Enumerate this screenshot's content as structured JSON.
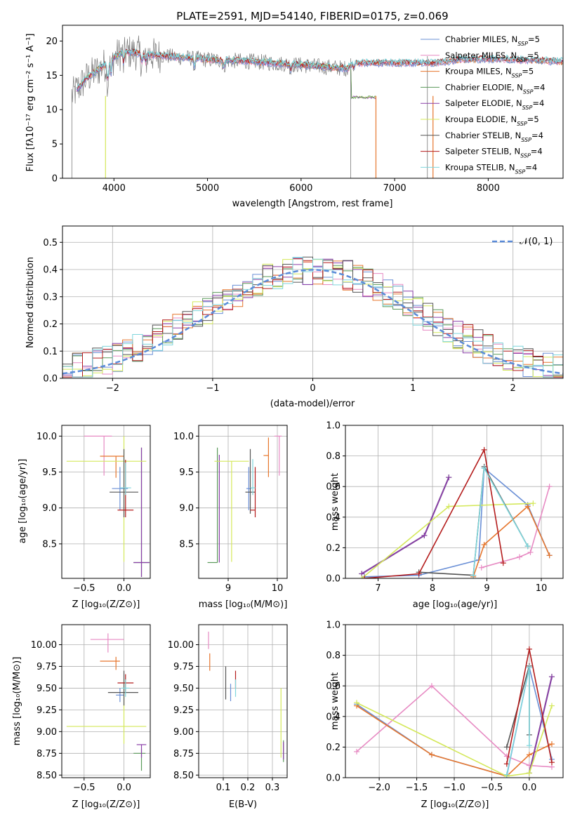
{
  "colors": {
    "series": [
      "#6a8fd6",
      "#e78ac3",
      "#e6762d",
      "#5a9a5a",
      "#8a3fa8",
      "#d4e85a",
      "#555555",
      "#b41c1c",
      "#7fd6dc"
    ],
    "normal": "#5b8bd8",
    "spectrum": "#7a7a7a"
  },
  "chart_data": [
    {
      "id": "spectrum",
      "type": "line",
      "title": "PLATE=2591, MJD=54140, FIBERID=0175, z=0.069",
      "xlabel": "wavelength [Angstrom, rest frame]",
      "ylabel": "Flux [fλ10⁻¹⁷ erg cm⁻² s⁻¹ A⁻¹]",
      "xlim": [
        3450,
        8800
      ],
      "ylim": [
        0,
        22.3
      ],
      "xticks": [
        4000,
        5000,
        6000,
        7000,
        8000
      ],
      "yticks": [
        0,
        5,
        10,
        15,
        20
      ],
      "grid": false,
      "legend_position": "top-right",
      "legend": [
        {
          "model": "Chabrier MILES, N",
          "sub": "SSP",
          "n": "=5"
        },
        {
          "model": "Salpeter MILES, N",
          "sub": "SSP",
          "n": "=5"
        },
        {
          "model": "Kroupa MILES, N",
          "sub": "SSP",
          "n": "=5"
        },
        {
          "model": "Chabrier ELODIE, N",
          "sub": "SSP",
          "n": "=4"
        },
        {
          "model": "Salpeter ELODIE, N",
          "sub": "SSP",
          "n": "=4"
        },
        {
          "model": "Kroupa ELODIE, N",
          "sub": "SSP",
          "n": "=5"
        },
        {
          "model": "Chabrier STELIB, N",
          "sub": "SSP",
          "n": "=4"
        },
        {
          "model": "Salpeter STELIB, N",
          "sub": "SSP",
          "n": "=4"
        },
        {
          "model": "Kroupa STELIB, N",
          "sub": "SSP",
          "n": "=4"
        }
      ],
      "continuum_x": [
        3550,
        3700,
        3900,
        4100,
        4400,
        5000,
        5500,
        6000,
        6500,
        6550,
        7000,
        7400,
        7700,
        8000,
        8300,
        8800
      ],
      "continuum_y": [
        12.0,
        14.5,
        16.5,
        18.5,
        18.0,
        17.3,
        17.0,
        16.5,
        16.0,
        16.8,
        16.8,
        16.8,
        17.3,
        17.4,
        17.3,
        17.0
      ],
      "elodie_drop": {
        "start": 6540,
        "end": 6800,
        "level": 11.8
      }
    },
    {
      "id": "residuals",
      "type": "histogram",
      "xlabel": "(data-model)/error",
      "ylabel": "Normed distribution",
      "xlim": [
        -2.5,
        2.5
      ],
      "ylim": [
        0,
        0.56
      ],
      "xticks": [
        -2,
        -1,
        0,
        1,
        2
      ],
      "yticks": [
        0.0,
        0.1,
        0.2,
        0.3,
        0.4,
        0.5
      ],
      "grid": true,
      "legend_position": "top-right",
      "legend": "𝒩(0, 1)"
    },
    {
      "id": "age_vs_Z",
      "type": "errorbar",
      "xlabel": "Z [log₁₀(Z/Z⊙)]",
      "ylabel": "age  [log₁₀(age/yr)]",
      "xlim": [
        -0.78,
        0.33
      ],
      "ylim": [
        8.02,
        10.15
      ],
      "xticks": [
        -0.5,
        0.0
      ],
      "yticks": [
        8.5,
        9.0,
        9.5,
        10.0
      ],
      "grid": true,
      "points": [
        {
          "x": -0.05,
          "y": 9.27,
          "xerr": [
            0.1,
            0.1
          ],
          "yerr": [
            0.3,
            0.3
          ]
        },
        {
          "x": -0.25,
          "y": 10.0,
          "xerr": [
            0.25,
            0.1
          ],
          "yerr": [
            0.55,
            0.0
          ]
        },
        {
          "x": -0.1,
          "y": 9.72,
          "xerr": [
            0.2,
            0.1
          ],
          "yerr": [
            0.3,
            0.0
          ]
        },
        {
          "x": 0.22,
          "y": 8.24,
          "xerr": [
            0.1,
            0.1
          ],
          "yerr": [
            0.2,
            1.6
          ]
        },
        {
          "x": 0.22,
          "y": 8.24,
          "xerr": [
            0.1,
            0.1
          ],
          "yerr": [
            0.2,
            1.6
          ]
        },
        {
          "x": 0.0,
          "y": 9.65,
          "xerr": [
            0.72,
            0.28
          ],
          "yerr": [
            1.4,
            0.35
          ]
        },
        {
          "x": 0.0,
          "y": 9.22,
          "xerr": [
            0.18,
            0.18
          ],
          "yerr": [
            0.35,
            0.6
          ]
        },
        {
          "x": 0.02,
          "y": 8.97,
          "xerr": [
            0.1,
            0.1
          ],
          "yerr": [
            0.1,
            0.7
          ]
        },
        {
          "x": 0.02,
          "y": 9.28,
          "xerr": [
            0.07,
            0.07
          ],
          "yerr": [
            0.1,
            0.35
          ]
        }
      ]
    },
    {
      "id": "age_vs_mass",
      "type": "errorbar",
      "xlabel": "mass [log₁₀(M/M⊙)]",
      "ylabel": "",
      "xlim": [
        8.4,
        10.2
      ],
      "ylim": [
        8.02,
        10.15
      ],
      "xticks": [
        9,
        10
      ],
      "yticks": [
        8.5,
        9.0,
        9.5,
        10.0
      ],
      "grid": true,
      "points": [
        {
          "x": 9.42,
          "y": 9.27,
          "xerr": [
            0.05,
            0.05
          ],
          "yerr": [
            0.3,
            0.3
          ]
        },
        {
          "x": 10.04,
          "y": 10.0,
          "xerr": [
            0.1,
            0.05
          ],
          "yerr": [
            0.55,
            0.0
          ]
        },
        {
          "x": 9.82,
          "y": 9.73,
          "xerr": [
            0.1,
            0.0
          ],
          "yerr": [
            0.3,
            0.25
          ]
        },
        {
          "x": 8.78,
          "y": 8.24,
          "xerr": [
            0.2,
            0.0
          ],
          "yerr": [
            0.0,
            1.6
          ]
        },
        {
          "x": 8.82,
          "y": 8.24,
          "xerr": [
            0.0,
            0.0
          ],
          "yerr": [
            0.0,
            1.5
          ]
        },
        {
          "x": 9.07,
          "y": 9.65,
          "xerr": [
            0.35,
            0.35
          ],
          "yerr": [
            1.4,
            0.0
          ]
        },
        {
          "x": 9.45,
          "y": 9.22,
          "xerr": [
            0.1,
            0.1
          ],
          "yerr": [
            0.3,
            0.6
          ]
        },
        {
          "x": 9.55,
          "y": 8.97,
          "xerr": [
            0.1,
            0.0
          ],
          "yerr": [
            0.1,
            0.6
          ]
        },
        {
          "x": 9.5,
          "y": 9.28,
          "xerr": [
            0.05,
            0.05
          ],
          "yerr": [
            0.1,
            0.4
          ]
        }
      ]
    },
    {
      "id": "mass_weight_vs_age",
      "type": "line",
      "xlabel": "age  [log₁₀(age/yr)]",
      "ylabel": "mass weight",
      "xlim": [
        6.4,
        10.4
      ],
      "ylim": [
        0,
        1.0
      ],
      "xticks": [
        7,
        8,
        9,
        10
      ],
      "yticks": [
        0.0,
        0.2,
        0.4,
        0.6,
        0.8,
        1.0
      ],
      "grid": true,
      "series": [
        {
          "x": [
            6.75,
            7.75,
            8.85,
            8.95,
            9.75,
            10.15
          ],
          "y": [
            0.01,
            0.02,
            0.12,
            0.72,
            0.48,
            0.15
          ]
        },
        {
          "x": [
            8.9,
            9.6,
            9.8,
            10.15
          ],
          "y": [
            0.07,
            0.14,
            0.17,
            0.6
          ]
        },
        {
          "x": [
            8.75,
            8.95,
            9.75,
            10.15
          ],
          "y": [
            0.01,
            0.22,
            0.47,
            0.15
          ]
        },
        {
          "x": [
            6.7,
            7.85,
            8.3
          ],
          "y": [
            0.03,
            0.28,
            0.66
          ]
        },
        {
          "x": [
            6.7,
            7.85,
            8.3
          ],
          "y": [
            0.03,
            0.28,
            0.66
          ]
        },
        {
          "x": [
            6.7,
            8.3,
            9.85
          ],
          "y": [
            0.0,
            0.47,
            0.49
          ]
        },
        {
          "x": [
            7.75,
            8.75,
            8.95,
            9.75
          ],
          "y": [
            0.04,
            0.02,
            0.73,
            0.21
          ]
        },
        {
          "x": [
            6.75,
            7.75,
            8.95,
            9.3
          ],
          "y": [
            0.0,
            0.03,
            0.84,
            0.1
          ]
        },
        {
          "x": [
            8.75,
            8.95,
            9.75
          ],
          "y": [
            0.02,
            0.72,
            0.21
          ]
        }
      ]
    },
    {
      "id": "mass_vs_Z",
      "type": "errorbar",
      "xlabel": "Z [log₁₀(Z/Z⊙)]",
      "ylabel": "mass [log₁₀(M/M⊙)]",
      "xlim": [
        -0.78,
        0.33
      ],
      "ylim": [
        8.47,
        10.23
      ],
      "xticks": [
        -0.5,
        0.0
      ],
      "yticks": [
        8.5,
        8.75,
        9.0,
        9.25,
        9.5,
        9.75,
        10.0
      ],
      "grid": true,
      "points": [
        {
          "x": -0.05,
          "y": 9.42,
          "xerr": [
            0.05,
            0.05
          ],
          "yerr": [
            0.08,
            0.08
          ]
        },
        {
          "x": -0.2,
          "y": 10.06,
          "xerr": [
            0.22,
            0.2
          ],
          "yerr": [
            0.15,
            0.07
          ]
        },
        {
          "x": -0.1,
          "y": 9.81,
          "xerr": [
            0.2,
            0.05
          ],
          "yerr": [
            0.1,
            0.05
          ]
        },
        {
          "x": 0.22,
          "y": 8.75,
          "xerr": [
            0.1,
            0.05
          ],
          "yerr": [
            0.2,
            0.05
          ]
        },
        {
          "x": 0.22,
          "y": 8.85,
          "xerr": [
            0.06,
            0.06
          ],
          "yerr": [
            0.15,
            0.0
          ]
        },
        {
          "x": 0.0,
          "y": 9.06,
          "xerr": [
            0.72,
            0.28
          ],
          "yerr": [
            0.2,
            0.55
          ]
        },
        {
          "x": 0.0,
          "y": 9.45,
          "xerr": [
            0.2,
            0.18
          ],
          "yerr": [
            0.15,
            0.25
          ]
        },
        {
          "x": 0.02,
          "y": 9.56,
          "xerr": [
            0.1,
            0.1
          ],
          "yerr": [
            0.1,
            0.1
          ]
        },
        {
          "x": 0.02,
          "y": 9.5,
          "xerr": [
            0.05,
            0.05
          ],
          "yerr": [
            0.1,
            0.1
          ]
        }
      ]
    },
    {
      "id": "mass_vs_EBV",
      "type": "errorbar",
      "xlabel": "E(B-V)",
      "ylabel": "",
      "xlim": [
        0.0,
        0.36
      ],
      "ylim": [
        8.47,
        10.23
      ],
      "xticks": [
        0.1,
        0.2,
        0.3
      ],
      "yticks": [
        8.5,
        8.75,
        9.0,
        9.25,
        9.5,
        9.75,
        10.0
      ],
      "grid": true,
      "points": [
        {
          "x": 0.13,
          "y": 9.45,
          "xerr": [
            0,
            0
          ],
          "yerr": [
            0.1,
            0.1
          ]
        },
        {
          "x": 0.04,
          "y": 10.05,
          "xerr": [
            0,
            0
          ],
          "yerr": [
            0.1,
            0.1
          ]
        },
        {
          "x": 0.045,
          "y": 9.8,
          "xerr": [
            0,
            0
          ],
          "yerr": [
            0.1,
            0.1
          ]
        },
        {
          "x": 0.345,
          "y": 8.75,
          "xerr": [
            0,
            0
          ],
          "yerr": [
            0.1,
            0.15
          ]
        },
        {
          "x": 0.345,
          "y": 8.78,
          "xerr": [
            0,
            0
          ],
          "yerr": [
            0.1,
            0.1
          ]
        },
        {
          "x": 0.335,
          "y": 9.1,
          "xerr": [
            0,
            0
          ],
          "yerr": [
            0.4,
            0.4
          ]
        },
        {
          "x": 0.11,
          "y": 9.55,
          "xerr": [
            0,
            0
          ],
          "yerr": [
            0.18,
            0.2
          ]
        },
        {
          "x": 0.15,
          "y": 9.6,
          "xerr": [
            0,
            0
          ],
          "yerr": [
            0.1,
            0.1
          ]
        },
        {
          "x": 0.15,
          "y": 9.5,
          "xerr": [
            0,
            0
          ],
          "yerr": [
            0.1,
            0.1
          ]
        }
      ]
    },
    {
      "id": "mass_weight_vs_Z",
      "type": "line",
      "xlabel": "Z [log₁₀(Z/Z⊙)]",
      "ylabel": "mass weight",
      "xlim": [
        -2.45,
        0.45
      ],
      "ylim": [
        0,
        1.0
      ],
      "xticks": [
        -2.0,
        -1.5,
        -1.0,
        -0.5,
        0.0
      ],
      "yticks": [
        0.0,
        0.2,
        0.4,
        0.6,
        0.8,
        1.0
      ],
      "grid": true,
      "series": [
        {
          "x": [
            -2.3,
            -1.3,
            -0.3,
            0.0,
            0.3
          ],
          "y": [
            0.48,
            0.15,
            0.01,
            0.72,
            0.12
          ]
        },
        {
          "x": [
            -2.3,
            -1.3,
            -0.3,
            0.0,
            0.3
          ],
          "y": [
            0.17,
            0.6,
            0.14,
            0.08,
            0.07
          ]
        },
        {
          "x": [
            -2.3,
            -1.3,
            -0.3,
            0.0,
            0.3
          ],
          "y": [
            0.47,
            0.15,
            0.01,
            0.15,
            0.22
          ]
        },
        {
          "x": [
            0.0,
            0.3
          ],
          "y": [
            0.03,
            0.66
          ]
        },
        {
          "x": [
            0.0,
            0.3
          ],
          "y": [
            0.03,
            0.66
          ]
        },
        {
          "x": [
            -2.3,
            -0.3,
            0.0,
            0.3
          ],
          "y": [
            0.49,
            0.01,
            0.03,
            0.47
          ]
        },
        {
          "x": [
            -0.3,
            0.0,
            0.0
          ],
          "y": [
            0.2,
            0.73,
            0.28
          ]
        },
        {
          "x": [
            -0.3,
            0.0,
            0.3
          ],
          "y": [
            0.09,
            0.84,
            0.1
          ]
        },
        {
          "x": [
            -0.3,
            0.0,
            0.0
          ],
          "y": [
            0.02,
            0.72,
            0.21
          ]
        }
      ]
    }
  ]
}
